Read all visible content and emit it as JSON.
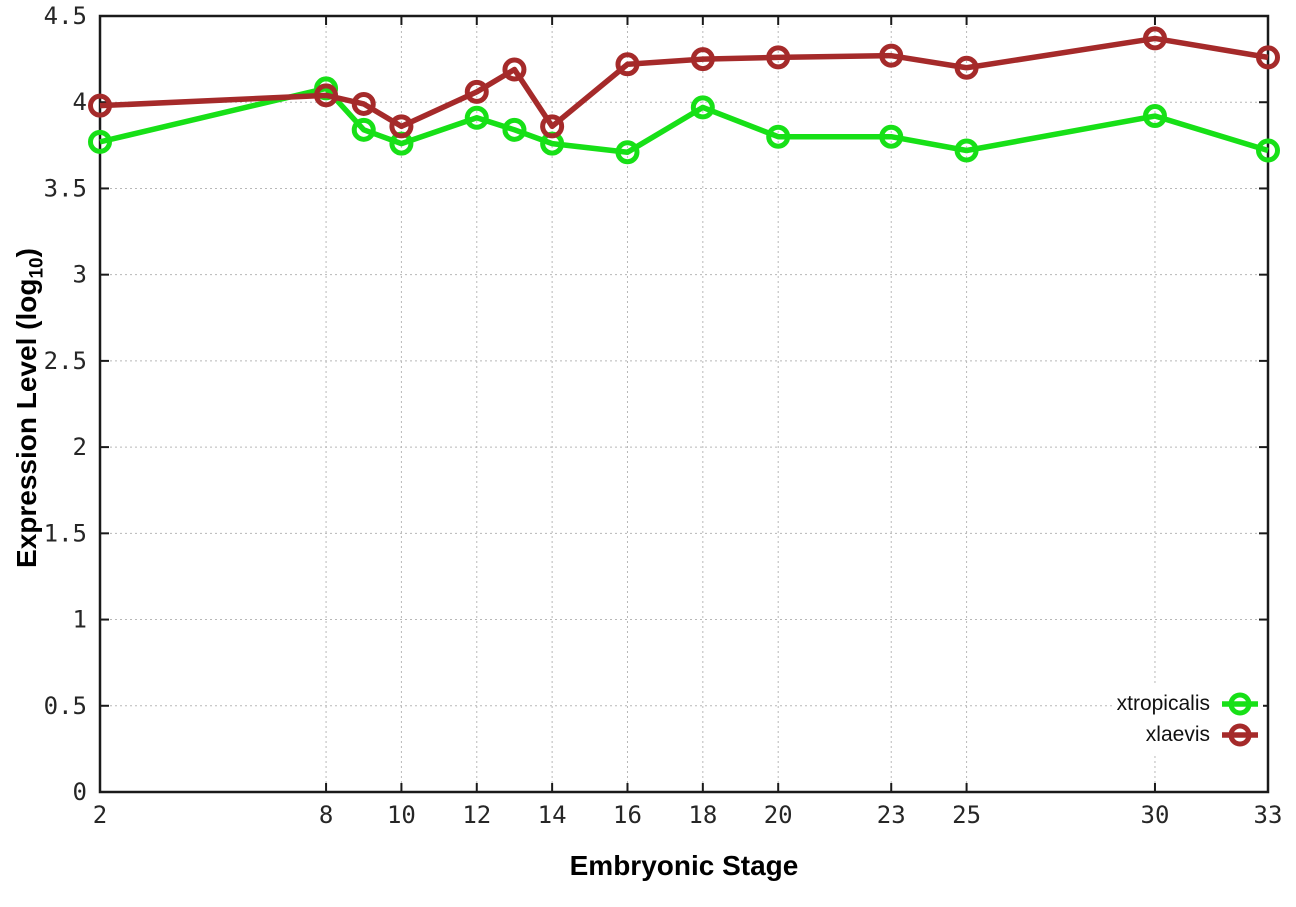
{
  "chart_data": {
    "type": "line",
    "title": "",
    "xlabel": "Embryonic Stage",
    "ylabel": "Expression Level (log10)",
    "ylabel_parts": {
      "pre": "Expression Level (log",
      "sub": "10",
      "post": ")"
    },
    "xlim": [
      2,
      33
    ],
    "ylim": [
      0,
      4.5
    ],
    "grid": true,
    "legend_position": "inside-bottom-right",
    "x": [
      2,
      8,
      9,
      10,
      12,
      13,
      14,
      16,
      18,
      20,
      23,
      25,
      30,
      33
    ],
    "xticks": [
      2,
      8,
      10,
      12,
      14,
      16,
      18,
      20,
      23,
      25,
      30,
      33
    ],
    "xtick_labels": [
      "2",
      "8",
      "10",
      "12",
      "14",
      "16",
      "18",
      "20",
      "23",
      "25",
      "30",
      "33"
    ],
    "yticks": [
      0,
      0.5,
      1,
      1.5,
      2,
      2.5,
      3,
      3.5,
      4,
      4.5
    ],
    "ytick_labels": [
      "0",
      "0.5",
      "1",
      "1.5",
      "2",
      "2.5",
      "3",
      "3.5",
      "4",
      "4.5"
    ],
    "series": [
      {
        "name": "xtropicalis",
        "color": "#17e017",
        "marker": "open-circle",
        "values": [
          3.77,
          4.08,
          3.84,
          3.76,
          3.91,
          3.84,
          3.76,
          3.71,
          3.97,
          3.8,
          3.8,
          3.72,
          3.92,
          3.72
        ]
      },
      {
        "name": "xlaevis",
        "color": "#a52a2a",
        "marker": "open-circle",
        "values": [
          3.98,
          4.04,
          3.99,
          3.86,
          4.06,
          4.19,
          3.86,
          4.22,
          4.25,
          4.26,
          4.27,
          4.2,
          4.37,
          4.26
        ]
      }
    ],
    "style": {
      "grid_color": "#b8b8b8",
      "axis_color": "#1a1a1a",
      "tick_label_color": "#262626"
    }
  }
}
